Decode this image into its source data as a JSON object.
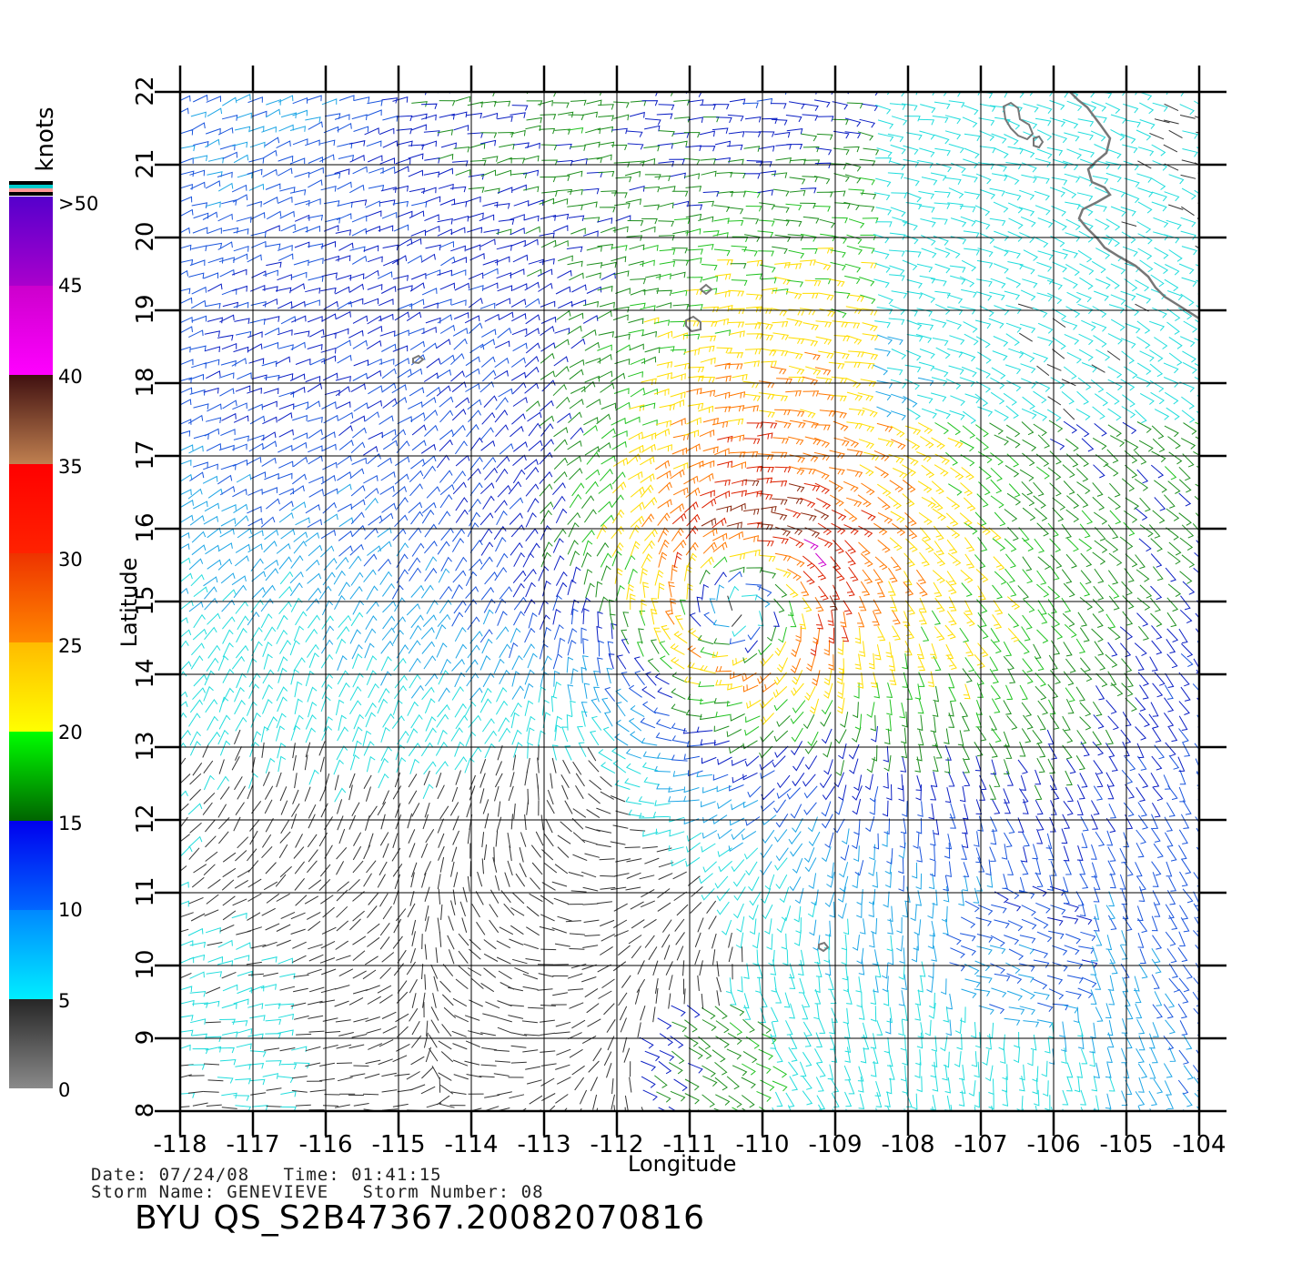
{
  "chart_data": {
    "type": "wind-barb-map",
    "xlabel": "Longitude",
    "ylabel": "Latitude",
    "xlim": [
      -118,
      -104
    ],
    "ylim": [
      8,
      22
    ],
    "grid": true,
    "x_ticks": [
      "-118",
      "-117",
      "-116",
      "-115",
      "-114",
      "-113",
      "-112",
      "-111",
      "-110",
      "-109",
      "-108",
      "-107",
      "-106",
      "-105",
      "-104"
    ],
    "y_ticks": [
      "8",
      "9",
      "10",
      "11",
      "12",
      "13",
      "14",
      "15",
      "16",
      "17",
      "18",
      "19",
      "20",
      "21",
      "22"
    ],
    "storm_center": {
      "lon": -110.2,
      "lat": 15.1
    },
    "colorbar": {
      "unit": "knots",
      "labels": [
        "0",
        "5",
        "10",
        "15",
        "20",
        "25",
        "30",
        "35",
        "40",
        "45",
        ">50"
      ],
      "bands": [
        {
          "from": 0,
          "to": 5,
          "colors": [
            "#8a8a8a",
            "#262626"
          ]
        },
        {
          "from": 5,
          "to": 10,
          "colors": [
            "#00eeff",
            "#0088ff"
          ]
        },
        {
          "from": 10,
          "to": 15,
          "colors": [
            "#0066ff",
            "#0000ee"
          ]
        },
        {
          "from": 15,
          "to": 20,
          "colors": [
            "#006400",
            "#00ff00"
          ]
        },
        {
          "from": 20,
          "to": 25,
          "colors": [
            "#ffff00",
            "#ffbb00"
          ]
        },
        {
          "from": 25,
          "to": 30,
          "colors": [
            "#ff8800",
            "#ee3300"
          ]
        },
        {
          "from": 30,
          "to": 35,
          "colors": [
            "#ff2200",
            "#ff0000"
          ]
        },
        {
          "from": 35,
          "to": 40,
          "colors": [
            "#c08050",
            "#401010"
          ]
        },
        {
          "from": 40,
          "to": 45,
          "colors": [
            "#ff00ff",
            "#cc00cc"
          ]
        },
        {
          "from": 45,
          "to": 50,
          "colors": [
            "#aa00cc",
            "#5500cc"
          ]
        }
      ],
      "top_stripes": [
        "#000000",
        "#00cccc",
        "#ff9999",
        "#000000"
      ]
    }
  },
  "meta": {
    "date_line": "Date: 07/24/08   Time: 01:41:15",
    "storm_line": "Storm Name: GENEVIEVE   Storm Number: 08",
    "file_id": "BYU QS_S2B47367.20082070816"
  }
}
